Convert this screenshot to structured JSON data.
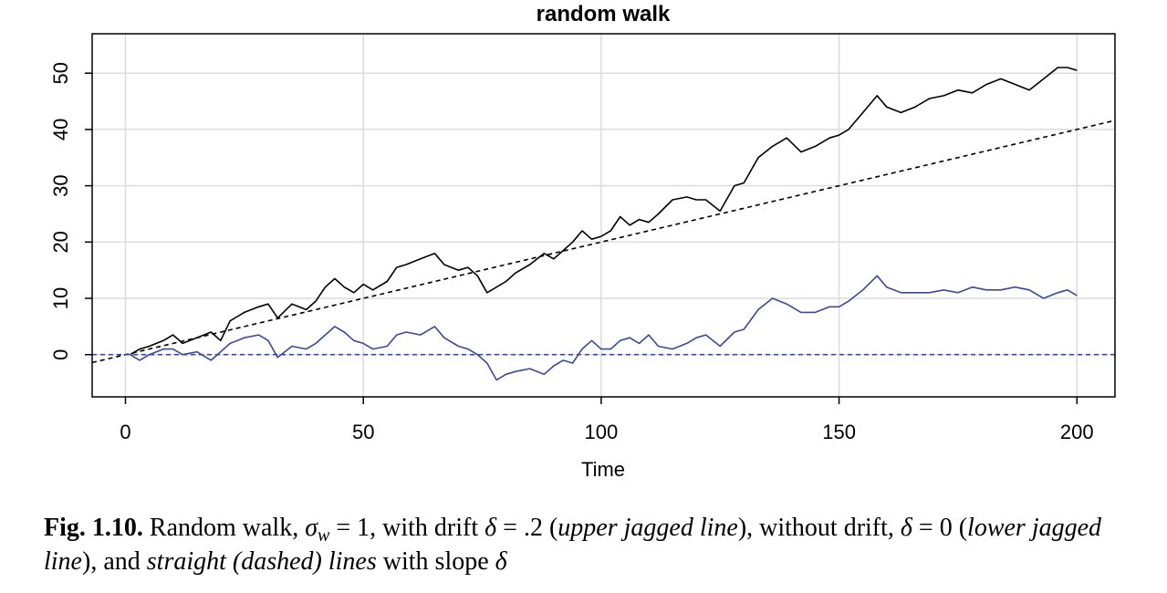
{
  "chart_data": {
    "type": "line",
    "title": "random walk",
    "xlabel": "Time",
    "ylabel": "",
    "xlim": [
      -7,
      208
    ],
    "ylim": [
      -7.5,
      57
    ],
    "xticks": [
      0,
      50,
      100,
      150,
      200
    ],
    "yticks": [
      0,
      10,
      20,
      30,
      40,
      50
    ],
    "grid": true,
    "series": [
      {
        "color": "#000000",
        "style": "solid",
        "x": [
          1,
          3,
          5,
          8,
          10,
          12,
          15,
          18,
          20,
          22,
          25,
          28,
          30,
          32,
          35,
          38,
          40,
          42,
          44,
          46,
          48,
          50,
          52,
          55,
          57,
          59,
          62,
          65,
          67,
          70,
          72,
          74,
          76,
          78,
          80,
          82,
          85,
          88,
          90,
          92,
          94,
          96,
          98,
          100,
          102,
          104,
          106,
          108,
          110,
          112,
          115,
          118,
          120,
          122,
          125,
          128,
          130,
          133,
          136,
          139,
          142,
          145,
          148,
          150,
          152,
          155,
          158,
          160,
          163,
          166,
          169,
          172,
          175,
          178,
          181,
          184,
          187,
          190,
          193,
          196,
          198,
          200
        ],
        "y": [
          0,
          1,
          1.5,
          2.5,
          3.5,
          2,
          3,
          4,
          2.5,
          6,
          7.5,
          8.5,
          9,
          6.5,
          9,
          8,
          9.5,
          12,
          13.5,
          12,
          11,
          12.5,
          11.5,
          13,
          15.5,
          16,
          17,
          18,
          16,
          15,
          15.5,
          14,
          11,
          12,
          13,
          14.5,
          16,
          18,
          17,
          18.5,
          20,
          22,
          20.5,
          21,
          22,
          24.5,
          23,
          24,
          23.5,
          25,
          27.5,
          28,
          27.5,
          27.5,
          25.5,
          30,
          30.5,
          35,
          37,
          38.5,
          36,
          37,
          38.5,
          39,
          40,
          43,
          46,
          44,
          43,
          44,
          45.5,
          46,
          47,
          46.5,
          48,
          49,
          48,
          47,
          49,
          51,
          51,
          50.5
        ]
      },
      {
        "color": "#3a48a0",
        "style": "solid",
        "x": [
          1,
          3,
          5,
          8,
          10,
          12,
          15,
          18,
          20,
          22,
          25,
          28,
          30,
          32,
          35,
          38,
          40,
          42,
          44,
          46,
          48,
          50,
          52,
          55,
          57,
          59,
          62,
          65,
          67,
          70,
          72,
          74,
          76,
          78,
          80,
          82,
          85,
          88,
          90,
          92,
          94,
          96,
          98,
          100,
          102,
          104,
          106,
          108,
          110,
          112,
          115,
          118,
          120,
          122,
          125,
          128,
          130,
          133,
          136,
          139,
          142,
          145,
          148,
          150,
          152,
          155,
          158,
          160,
          163,
          166,
          169,
          172,
          175,
          178,
          181,
          184,
          187,
          190,
          193,
          196,
          198,
          200
        ],
        "y": [
          0,
          -1,
          0,
          1,
          1,
          0,
          0.5,
          -1,
          0.5,
          2,
          3,
          3.5,
          2.5,
          -0.5,
          1.5,
          1,
          2,
          3.5,
          5,
          4,
          2.5,
          2,
          1,
          1.5,
          3.5,
          4,
          3.5,
          5,
          3,
          1.5,
          1,
          0,
          -1.5,
          -4.5,
          -3.5,
          -3,
          -2.5,
          -3.5,
          -2,
          -1,
          -1.5,
          1,
          2.5,
          1,
          1,
          2.5,
          3,
          2,
          3.5,
          1.5,
          1,
          2,
          3,
          3.5,
          1.5,
          4,
          4.5,
          8,
          10,
          9,
          7.5,
          7.5,
          8.5,
          8.5,
          9.5,
          11.5,
          14,
          12,
          11,
          11,
          11,
          11.5,
          11,
          12,
          11.5,
          11.5,
          12,
          11.5,
          10,
          11,
          11.5,
          10.5
        ]
      },
      {
        "color": "#000000",
        "style": "dashed",
        "x": [
          -7,
          208
        ],
        "y": [
          -1.4,
          41.6
        ]
      },
      {
        "color": "#3a48a0",
        "style": "dashed",
        "x": [
          -7,
          208
        ],
        "y": [
          0,
          0
        ]
      }
    ]
  },
  "caption": {
    "label": "Fig. 1.10.",
    "text_1": " Random walk, ",
    "sigma": "σ",
    "sigma_sub": "w",
    "text_2": " = 1, with drift ",
    "delta_1": "δ",
    "text_3": " = .2 (",
    "italic_1": "upper jagged line",
    "text_4": "), without drift, ",
    "delta_2": "δ",
    "text_5": " = 0 (",
    "italic_2": "lower jagged line",
    "text_6": "), and ",
    "italic_3": "straight (dashed) lines",
    "text_7": " with slope ",
    "delta_3": "δ"
  }
}
